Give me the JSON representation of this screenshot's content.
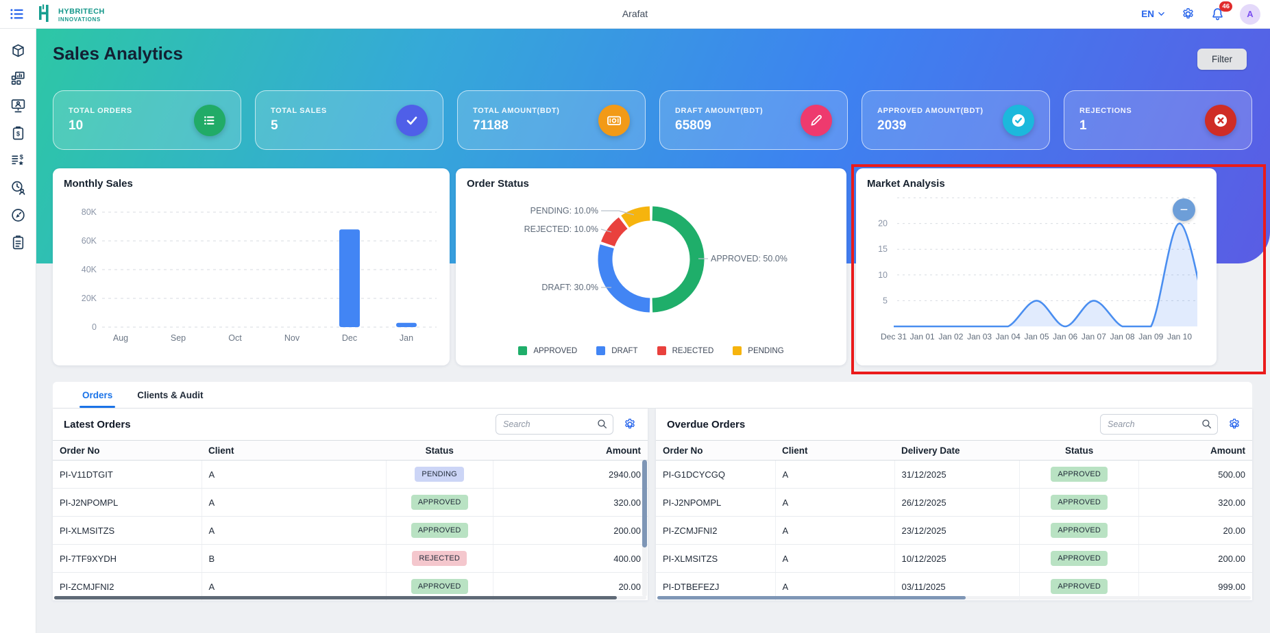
{
  "topbar": {
    "brand_line1": "HYBRITECH",
    "brand_line2": "INNOVATIONS",
    "username": "Arafat",
    "language": "EN",
    "notification_count": "46",
    "avatar_letter": "A"
  },
  "sidebar": {
    "icons": [
      "package",
      "modules",
      "monitor-user",
      "clipboard-dollar",
      "list-dollar-star",
      "clock-user",
      "compass-pen",
      "clipboard-audit"
    ]
  },
  "header": {
    "title": "Sales Analytics",
    "filter_label": "Filter"
  },
  "stat_cards": [
    {
      "label": "TOTAL ORDERS",
      "value": "10",
      "icon": "list",
      "color": "#21ab67"
    },
    {
      "label": "TOTAL SALES",
      "value": "5",
      "icon": "check",
      "color": "#4f5fe8"
    },
    {
      "label": "TOTAL AMOUNT(BDT)",
      "value": "71188",
      "icon": "banknote",
      "color": "#f29a17"
    },
    {
      "label": "DRAFT AMOUNT(BDT)",
      "value": "65809",
      "icon": "pencil",
      "color": "#ee3a6e"
    },
    {
      "label": "APPROVED AMOUNT(BDT)",
      "value": "2039",
      "icon": "check-circle",
      "color": "#1cb8dc"
    },
    {
      "label": "REJECTIONS",
      "value": "1",
      "icon": "x-circle",
      "color": "#cf2d26"
    }
  ],
  "chart_data": [
    {
      "type": "bar",
      "title": "Monthly Sales",
      "categories": [
        "Aug",
        "Sep",
        "Oct",
        "Nov",
        "Dec",
        "Jan"
      ],
      "values": [
        0,
        0,
        0,
        0,
        68000,
        3000
      ],
      "ylim": [
        0,
        80000
      ],
      "ytick_labels": [
        "0",
        "20K",
        "40K",
        "60K",
        "80K"
      ],
      "bar_color": "#4285f4",
      "grid": true,
      "legend_position": "none"
    },
    {
      "type": "pie",
      "subtype": "donut",
      "title": "Order Status",
      "labels": [
        "APPROVED",
        "DRAFT",
        "REJECTED",
        "PENDING"
      ],
      "values": [
        50,
        30,
        10,
        10
      ],
      "colors": [
        "#1fae6a",
        "#4285f4",
        "#e9413d",
        "#f6b40e"
      ],
      "callout_labels": [
        "APPROVED: 50.0%",
        "DRAFT: 30.0%",
        "REJECTED: 10.0%",
        "PENDING: 10.0%"
      ],
      "legend": [
        "APPROVED",
        "DRAFT",
        "REJECTED",
        "PENDING"
      ],
      "legend_position": "bottom"
    },
    {
      "type": "area",
      "title": "Market Analysis",
      "x": [
        "Dec 31",
        "Jan 01",
        "Jan 02",
        "Jan 03",
        "Jan 04",
        "Jan 05",
        "Jan 06",
        "Jan 07",
        "Jan 08",
        "Jan 09",
        "Jan 10"
      ],
      "values": [
        0,
        0,
        0,
        0,
        0,
        5,
        0,
        5,
        0,
        0,
        20
      ],
      "ylim": [
        0,
        25
      ],
      "yticks": [
        5,
        10,
        15,
        20
      ],
      "line_color": "#4a8ef0",
      "fill_color": "rgba(66,133,244,0.16)",
      "grid": true,
      "control": "minus-button"
    }
  ],
  "tabs": [
    {
      "label": "Orders",
      "active": true
    },
    {
      "label": "Clients & Audit",
      "active": false
    }
  ],
  "latest_orders": {
    "title": "Latest Orders",
    "search_placeholder": "Search",
    "columns": [
      "Order No",
      "Client",
      "Status",
      "Amount"
    ],
    "rows": [
      [
        "PI-V11DTGIT",
        "A",
        "PENDING",
        "2940.00"
      ],
      [
        "PI-J2NPOMPL",
        "A",
        "APPROVED",
        "320.00"
      ],
      [
        "PI-XLMSITZS",
        "A",
        "APPROVED",
        "200.00"
      ],
      [
        "PI-7TF9XYDH",
        "B",
        "REJECTED",
        "400.00"
      ],
      [
        "PI-ZCMJFNI2",
        "A",
        "APPROVED",
        "20.00"
      ]
    ]
  },
  "overdue_orders": {
    "title": "Overdue Orders",
    "search_placeholder": "Search",
    "columns": [
      "Order No",
      "Client",
      "Delivery Date",
      "Status",
      "Amount"
    ],
    "rows": [
      [
        "PI-G1DCYCGQ",
        "A",
        "31/12/2025",
        "APPROVED",
        "500.00"
      ],
      [
        "PI-J2NPOMPL",
        "A",
        "26/12/2025",
        "APPROVED",
        "320.00"
      ],
      [
        "PI-ZCMJFNI2",
        "A",
        "23/12/2025",
        "APPROVED",
        "20.00"
      ],
      [
        "PI-XLMSITZS",
        "A",
        "10/12/2025",
        "APPROVED",
        "200.00"
      ],
      [
        "PI-DTBEFEZJ",
        "A",
        "03/11/2025",
        "APPROVED",
        "999.00"
      ]
    ]
  },
  "badge_colors": {
    "PENDING": {
      "bg": "#ccd5f6",
      "text": "#1f2937"
    },
    "APPROVED": {
      "bg": "#b9e2c3",
      "text": "#1f2937"
    },
    "REJECTED": {
      "bg": "#f4c7cd",
      "text": "#1f2937"
    }
  },
  "annotation": {
    "color": "#ea1b1b"
  }
}
